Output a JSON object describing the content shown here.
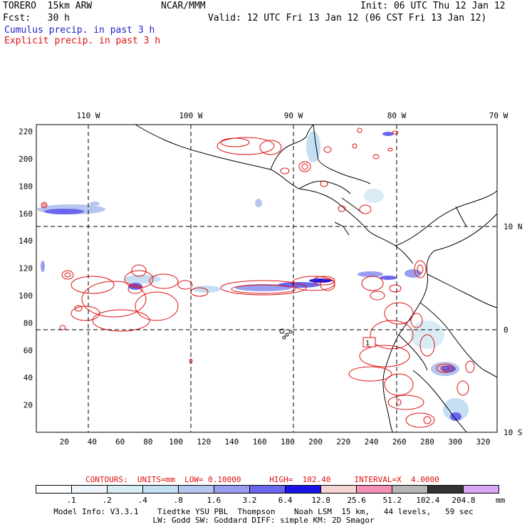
{
  "header": {
    "model_name": "TORERO  15km ARW",
    "org": "NCAR/MMM",
    "init": "Init: 06 UTC Thu 12 Jan 12",
    "fcst": "Fcst:   30 h",
    "valid": "Valid: 12 UTC Fri 13 Jan 12 (06 CST Fri 13 Jan 12)",
    "field1": "Cumulus precip. in past 3 h",
    "field2": "Explicit precip. in past 3 h"
  },
  "colors": {
    "field1": "#2222cc",
    "field2": "#dd1111",
    "contour": "#dd1111",
    "gridline": "#000000"
  },
  "map": {
    "lon_labels": [
      "110 W",
      "100 W",
      "90 W",
      "80 W",
      "70 W"
    ],
    "lat_labels": [
      "10 N",
      "0",
      "10 S"
    ],
    "x_ticks": [
      "20",
      "40",
      "60",
      "80",
      "100",
      "120",
      "140",
      "160",
      "180",
      "200",
      "220",
      "240",
      "260",
      "280",
      "300",
      "320"
    ],
    "y_ticks": [
      "20",
      "40",
      "60",
      "80",
      "100",
      "120",
      "140",
      "160",
      "180",
      "200",
      "220"
    ],
    "contour_label": "1"
  },
  "contours_info": "CONTOURS:  UNITS=mm  LOW= 0.10000      HIGH=  102.40     INTERVAL=X  4.0000",
  "legend": {
    "unit": "mm",
    "labels": [
      ".1",
      ".2",
      ".4",
      ".8",
      "1.6",
      "3.2",
      "6.4",
      "12.8",
      "25.6",
      "51.2",
      "102.4",
      "204.8"
    ],
    "colors": [
      "#ffffff",
      "#eef6fb",
      "#d8ecf6",
      "#c4dff2",
      "#b6c6f0",
      "#9a9ef0",
      "#6a66ee",
      "#1a14e8",
      "#f6d4d4",
      "#f290b6",
      "#b6b6b6",
      "#333333",
      "#d8a6f2"
    ]
  },
  "footer": {
    "line1": "Model Info: V3.3.1    Tiedtke YSU PBL  Thompson    Noah LSM  15 km,   44 levels,   59 sec",
    "line2": "LW: Godd SW: Goddard DIFF: simple KM: 2D Smagor"
  }
}
